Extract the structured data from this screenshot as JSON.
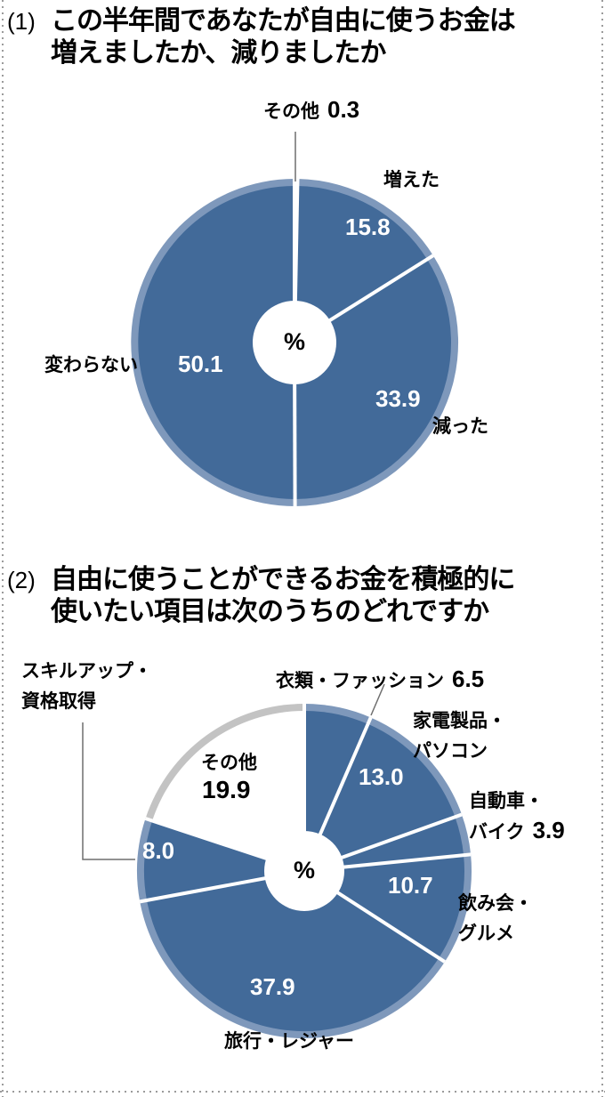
{
  "page": {
    "background": "#ffffff",
    "border_dot_color": "#9b9b9b"
  },
  "colors": {
    "segment_blue": "#426a99",
    "segment_blue_rim": "#7e98bb",
    "segment_white": "#ffffff",
    "segment_white_rim": "#c3c3c3",
    "divider": "#ffffff",
    "leader": "#6e6e6e",
    "text": "#000000",
    "value_on_segment": "#ffffff"
  },
  "chart_data": [
    {
      "type": "pie",
      "index_label": "(1)",
      "title_lines": [
        "この半年間であなたが自由に使うお金は",
        "増えましたか、減りましたか"
      ],
      "center_label": "%",
      "unit": "%",
      "start_angle_deg": 0,
      "clockwise": true,
      "legend_position": "around",
      "segments": [
        {
          "label": "その他",
          "value": 0.3,
          "display": "0.3",
          "color": "blue"
        },
        {
          "label": "増えた",
          "value": 15.8,
          "display": "15.8",
          "color": "blue"
        },
        {
          "label": "減った",
          "value": 33.9,
          "display": "33.9",
          "color": "blue"
        },
        {
          "label": "変わらない",
          "value": 50.1,
          "display": "50.1",
          "color": "blue"
        }
      ]
    },
    {
      "type": "pie",
      "index_label": "(2)",
      "title_lines": [
        "自由に使うことができるお金を積極的に",
        "使いたい項目は次のうちのどれですか"
      ],
      "center_label": "%",
      "unit": "%",
      "start_angle_deg": 0,
      "clockwise": true,
      "legend_position": "around",
      "segments": [
        {
          "label": "衣類・ファッション",
          "label_lines": [
            "衣類・ファッション"
          ],
          "value": 6.5,
          "display": "6.5",
          "color": "blue"
        },
        {
          "label": "家電製品・パソコン",
          "label_lines": [
            "家電製品・",
            "パソコン"
          ],
          "value": 13.0,
          "display": "13.0",
          "color": "blue"
        },
        {
          "label": "自動車・バイク",
          "label_lines": [
            "自動車・",
            "バイク"
          ],
          "value": 3.9,
          "display": "3.9",
          "color": "blue"
        },
        {
          "label": "飲み会・グルメ",
          "label_lines": [
            "飲み会・",
            "グルメ"
          ],
          "value": 10.7,
          "display": "10.7",
          "color": "blue"
        },
        {
          "label": "旅行・レジャー",
          "label_lines": [
            "旅行・レジャー"
          ],
          "value": 37.9,
          "display": "37.9",
          "color": "blue"
        },
        {
          "label": "スキルアップ・資格取得",
          "label_lines": [
            "スキルアップ・",
            "資格取得"
          ],
          "value": 8.0,
          "display": "8.0",
          "color": "blue"
        },
        {
          "label": "その他",
          "label_lines": [
            "その他"
          ],
          "value": 19.9,
          "display": "19.9",
          "color": "white"
        }
      ]
    }
  ]
}
